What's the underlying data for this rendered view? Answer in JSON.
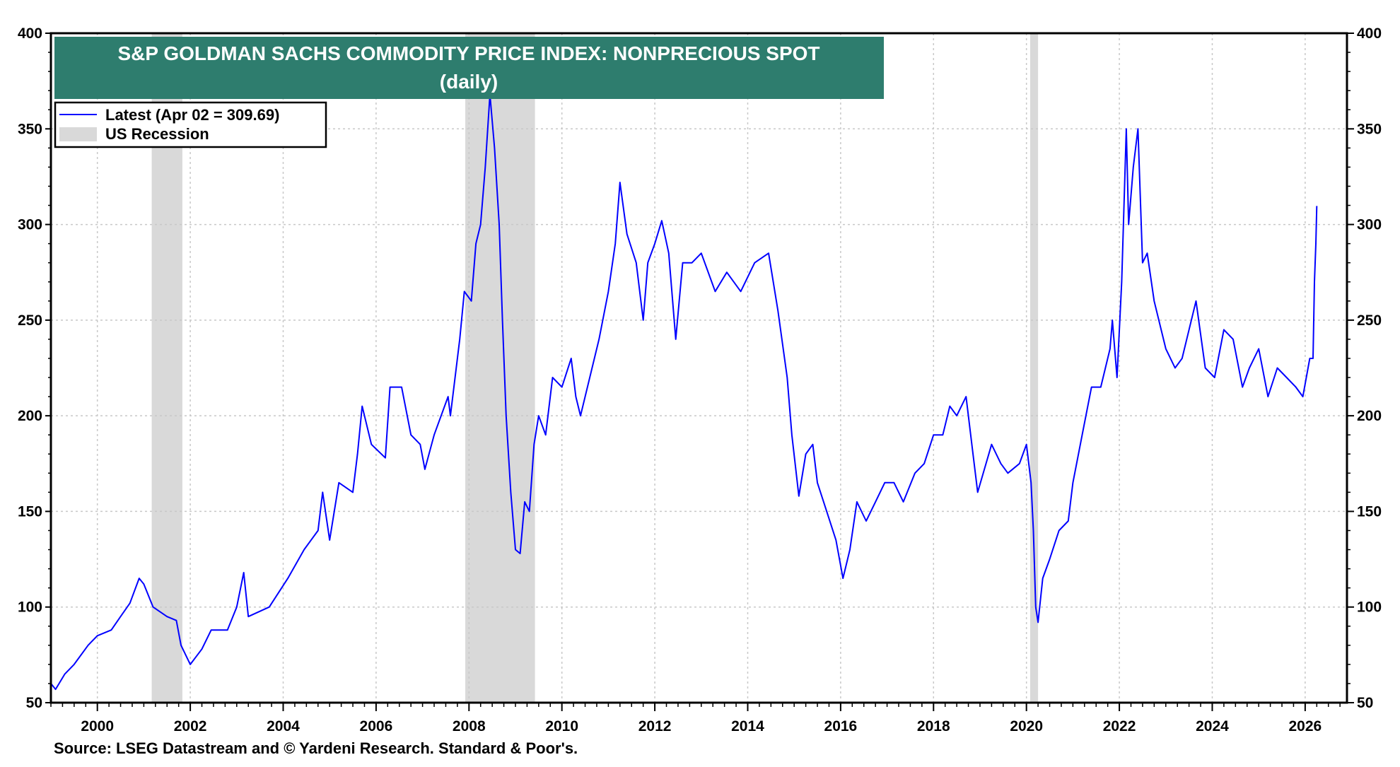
{
  "chart_data": {
    "type": "line",
    "title": "S&P GOLDMAN SACHS COMMODITY PRICE INDEX: NONPRECIOUS SPOT",
    "subtitle": "(daily)",
    "xlabel": "",
    "ylabel": "",
    "xlim": [
      1999.0,
      2026.9
    ],
    "ylim": [
      50,
      400
    ],
    "x_ticks": [
      "2000",
      "2002",
      "2004",
      "2006",
      "2008",
      "2010",
      "2012",
      "2014",
      "2016",
      "2018",
      "2020",
      "2022",
      "2024",
      "2026"
    ],
    "y_ticks": [
      "50",
      "100",
      "150",
      "200",
      "250",
      "300",
      "350",
      "400"
    ],
    "grid": true,
    "legend_position": "top-left",
    "legend": {
      "series_label": "Latest (Apr 02 = 309.69)",
      "recession_label": "US Recession"
    },
    "recessions": [
      [
        2001.17,
        2001.83
      ],
      [
        2007.92,
        2009.42
      ],
      [
        2020.08,
        2020.25
      ]
    ],
    "series": [
      {
        "name": "Latest (Apr 02 = 309.69)",
        "color": "#0000ff",
        "x": [
          1999.0,
          1999.1,
          1999.3,
          1999.5,
          1999.8,
          2000.0,
          2000.3,
          2000.5,
          2000.7,
          2000.9,
          2001.0,
          2001.2,
          2001.5,
          2001.7,
          2001.8,
          2002.0,
          2002.25,
          2002.45,
          2002.8,
          2003.0,
          2003.15,
          2003.25,
          2003.7,
          2004.1,
          2004.45,
          2004.75,
          2004.85,
          2005.0,
          2005.2,
          2005.5,
          2005.6,
          2005.7,
          2005.9,
          2006.2,
          2006.3,
          2006.55,
          2006.75,
          2006.95,
          2007.05,
          2007.25,
          2007.55,
          2007.6,
          2007.8,
          2007.9,
          2008.05,
          2008.15,
          2008.25,
          2008.35,
          2008.45,
          2008.55,
          2008.65,
          2008.72,
          2008.8,
          2008.9,
          2009.0,
          2009.1,
          2009.2,
          2009.3,
          2009.4,
          2009.5,
          2009.65,
          2009.8,
          2010.0,
          2010.2,
          2010.3,
          2010.4,
          2010.6,
          2010.8,
          2011.0,
          2011.15,
          2011.25,
          2011.4,
          2011.6,
          2011.75,
          2011.85,
          2012.0,
          2012.15,
          2012.3,
          2012.45,
          2012.6,
          2012.8,
          2013.0,
          2013.3,
          2013.55,
          2013.85,
          2014.15,
          2014.45,
          2014.65,
          2014.85,
          2014.95,
          2015.1,
          2015.25,
          2015.4,
          2015.5,
          2015.7,
          2015.9,
          2016.05,
          2016.2,
          2016.35,
          2016.55,
          2016.75,
          2016.95,
          2017.15,
          2017.35,
          2017.6,
          2017.8,
          2018.0,
          2018.2,
          2018.35,
          2018.5,
          2018.7,
          2018.85,
          2018.95,
          2019.25,
          2019.45,
          2019.6,
          2019.85,
          2020.0,
          2020.1,
          2020.15,
          2020.2,
          2020.25,
          2020.35,
          2020.5,
          2020.7,
          2020.9,
          2021.0,
          2021.2,
          2021.4,
          2021.6,
          2021.8,
          2021.85,
          2021.95,
          2022.05,
          2022.15,
          2022.2,
          2022.3,
          2022.4,
          2022.5,
          2022.6,
          2022.75,
          2022.9,
          2023.0,
          2023.2,
          2023.35,
          2023.65,
          2023.85,
          2024.05,
          2024.25,
          2024.45,
          2024.65,
          2024.8,
          2025.0,
          2025.2,
          2025.4,
          2025.6,
          2025.8,
          2025.95,
          2026.1,
          2026.17,
          2026.2,
          2026.23,
          2026.25
        ],
        "y": [
          60,
          57,
          65,
          70,
          80,
          85,
          88,
          95,
          102,
          115,
          112,
          100,
          95,
          93,
          80,
          70,
          78,
          88,
          88,
          100,
          118,
          95,
          100,
          115,
          130,
          140,
          160,
          135,
          165,
          160,
          180,
          205,
          185,
          178,
          215,
          215,
          190,
          185,
          172,
          190,
          210,
          200,
          240,
          265,
          260,
          290,
          300,
          330,
          368,
          340,
          300,
          250,
          200,
          160,
          130,
          128,
          155,
          150,
          185,
          200,
          190,
          220,
          215,
          230,
          210,
          200,
          220,
          240,
          265,
          290,
          322,
          295,
          280,
          250,
          280,
          290,
          302,
          285,
          240,
          280,
          280,
          285,
          265,
          275,
          265,
          280,
          285,
          255,
          220,
          190,
          158,
          180,
          185,
          165,
          150,
          135,
          115,
          130,
          155,
          145,
          155,
          165,
          165,
          155,
          170,
          175,
          190,
          190,
          205,
          200,
          210,
          180,
          160,
          185,
          175,
          170,
          175,
          185,
          165,
          140,
          100,
          92,
          115,
          125,
          140,
          145,
          165,
          190,
          215,
          215,
          235,
          250,
          220,
          270,
          350,
          300,
          330,
          350,
          280,
          285,
          260,
          245,
          235,
          225,
          230,
          260,
          225,
          220,
          245,
          240,
          215,
          225,
          235,
          210,
          225,
          220,
          215,
          210,
          230,
          230,
          270,
          290,
          309.69
        ]
      }
    ]
  },
  "source": "Source: LSEG Datastream and © Yardeni Research. Standard & Poor's.",
  "colors": {
    "title_bg": "#2e7d6e",
    "line": "#0000ff",
    "recession": "#d9d9d9",
    "grid": "#c8c8c8"
  }
}
